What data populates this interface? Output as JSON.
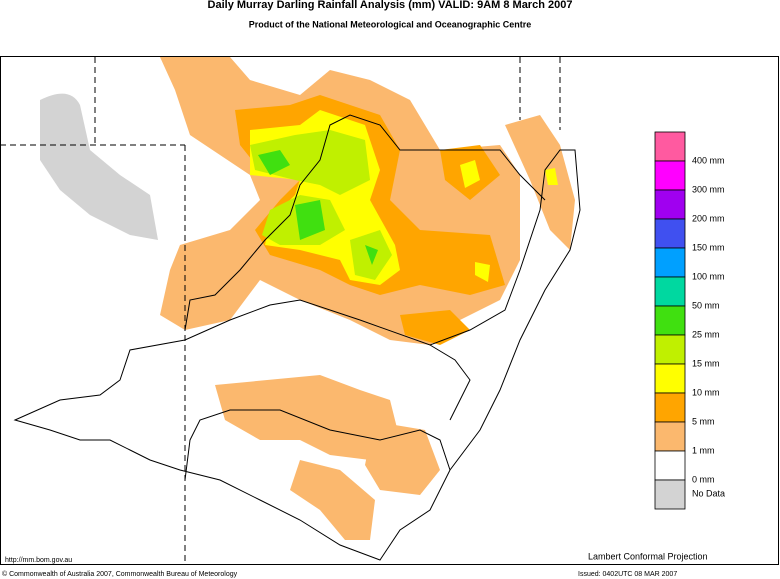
{
  "header": {
    "title": "Daily Murray Darling Rainfall Analysis (mm)  VALID: 9AM  8 March 2007",
    "subtitle": "Product of the National Meteorological and Oceanographic Centre"
  },
  "legend": {
    "items": [
      {
        "label": "400 mm",
        "color": "#ff5aa0"
      },
      {
        "label": "300 mm",
        "color": "#ff00ff"
      },
      {
        "label": "200 mm",
        "color": "#a000f0"
      },
      {
        "label": "150 mm",
        "color": "#4050f0"
      },
      {
        "label": "100 mm",
        "color": "#00a0ff"
      },
      {
        "label": "50 mm",
        "color": "#00d8a0"
      },
      {
        "label": "25 mm",
        "color": "#40e010"
      },
      {
        "label": "15 mm",
        "color": "#c0f000"
      },
      {
        "label": "10 mm",
        "color": "#ffff00"
      },
      {
        "label": "5 mm",
        "color": "#ffa500"
      },
      {
        "label": "1 mm",
        "color": "#fbb86e"
      },
      {
        "label": "0 mm",
        "color": "#ffffff"
      },
      {
        "label": "No Data",
        "color": "#d3d3d3"
      }
    ]
  },
  "footer": {
    "url": "http://mm.bom.gov.au",
    "projection": "Lambert Conformal Projection",
    "copyright": "© Commonwealth of Australia 2007, Commonwealth Bureau of Meteorology",
    "issued": "Issued: 0402UTC 08 MAR 2007"
  }
}
